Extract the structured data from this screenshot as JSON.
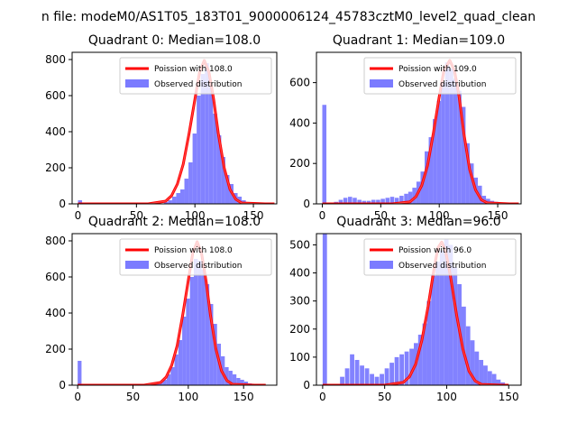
{
  "figure": {
    "suptitle": "n file: modeM0/AS1T05_183T01_9000006124_45783cztM0_level2_quad_clean"
  },
  "colors": {
    "hist": "#7b7bff",
    "fit": "#ff0000",
    "axis": "#000000",
    "background": "#ffffff"
  },
  "chart_data": [
    {
      "type": "bar",
      "title": "Quadrant 0: Median=108.0",
      "xlim": [
        -5,
        170
      ],
      "ylim": [
        0,
        840
      ],
      "xticks": [
        0,
        50,
        100,
        150
      ],
      "yticks": [
        0,
        200,
        400,
        600,
        800
      ],
      "legend": {
        "placement": "top-right",
        "entries": [
          "Poission with 108.0",
          "Observed distribution"
        ]
      },
      "hist": {
        "name": "Observed distribution",
        "bin_width": 3.5,
        "x": [
          0,
          73.5,
          77,
          80.5,
          84,
          87.5,
          91,
          94.5,
          98,
          101.5,
          105,
          108.5,
          112,
          115.5,
          119,
          122.5,
          126,
          129.5,
          133,
          136.5,
          140,
          143.5,
          147
        ],
        "values": [
          20,
          10,
          20,
          40,
          60,
          80,
          140,
          230,
          390,
          600,
          720,
          780,
          650,
          500,
          380,
          260,
          160,
          110,
          60,
          40,
          20,
          10,
          5
        ]
      },
      "fit": {
        "name": "Poission with 108.0",
        "x": [
          0,
          60,
          75,
          80,
          85,
          90,
          95,
          100,
          104,
          108,
          112,
          116,
          120,
          125,
          130,
          135,
          140,
          160,
          168
        ],
        "values": [
          0,
          0,
          15,
          45,
          110,
          220,
          390,
          580,
          730,
          795,
          730,
          580,
          390,
          200,
          80,
          25,
          5,
          0,
          0
        ]
      }
    },
    {
      "type": "bar",
      "title": "Quadrant 1: Median=109.0",
      "xlim": [
        -5,
        170
      ],
      "ylim": [
        0,
        750
      ],
      "xticks": [
        0,
        50,
        100,
        150
      ],
      "yticks": [
        0,
        200,
        400,
        600
      ],
      "legend": {
        "placement": "top-right",
        "entries": [
          "Poission with 109.0",
          "Observed distribution"
        ]
      },
      "hist": {
        "name": "Observed distribution",
        "bin_width": 3.5,
        "x": [
          0,
          10,
          14,
          18,
          22,
          26,
          30,
          34,
          38,
          42,
          46,
          50,
          54,
          58,
          62,
          66,
          70,
          73.5,
          77,
          80.5,
          84,
          87.5,
          91,
          94.5,
          98,
          101.5,
          105,
          108.5,
          112,
          115.5,
          119,
          122.5,
          126,
          129.5,
          133,
          136.5,
          140,
          143.5,
          147
        ],
        "values": [
          490,
          10,
          20,
          30,
          35,
          30,
          20,
          15,
          15,
          20,
          20,
          25,
          30,
          35,
          30,
          40,
          50,
          60,
          80,
          110,
          160,
          260,
          330,
          420,
          510,
          600,
          700,
          670,
          620,
          560,
          480,
          300,
          200,
          130,
          90,
          40,
          25,
          15,
          10
        ]
      },
      "fit": {
        "name": "Poission with 109.0",
        "x": [
          0,
          60,
          75,
          80,
          85,
          90,
          95,
          100,
          104,
          109,
          113,
          117,
          121,
          126,
          131,
          136,
          141,
          160,
          168
        ],
        "values": [
          0,
          0,
          10,
          35,
          90,
          190,
          350,
          530,
          660,
          710,
          660,
          530,
          350,
          170,
          70,
          20,
          5,
          0,
          0
        ]
      }
    },
    {
      "type": "bar",
      "title": "Quadrant 2: Median=108.0",
      "xlim": [
        -5,
        180
      ],
      "ylim": [
        0,
        840
      ],
      "xticks": [
        0,
        50,
        100,
        150
      ],
      "yticks": [
        0,
        200,
        400,
        600,
        800
      ],
      "legend": {
        "placement": "top-right",
        "entries": [
          "Poission with 108.0",
          "Observed distribution"
        ]
      },
      "hist": {
        "name": "Observed distribution",
        "bin_width": 3.5,
        "x": [
          0,
          70,
          73.5,
          77,
          80.5,
          84,
          87.5,
          91,
          94.5,
          98,
          101.5,
          105,
          108.5,
          112,
          115.5,
          119,
          122.5,
          126,
          129.5,
          133,
          136.5,
          140,
          143.5,
          147,
          150.5,
          154,
          157.5
        ],
        "values": [
          135,
          10,
          20,
          30,
          60,
          100,
          170,
          250,
          380,
          480,
          600,
          700,
          690,
          640,
          560,
          450,
          340,
          230,
          160,
          100,
          80,
          60,
          40,
          30,
          20,
          10,
          5
        ]
      },
      "fit": {
        "name": "Poission with 108.0",
        "x": [
          0,
          60,
          75,
          80,
          85,
          90,
          95,
          100,
          104,
          108,
          112,
          116,
          120,
          125,
          130,
          135,
          140,
          160,
          170
        ],
        "values": [
          0,
          0,
          15,
          45,
          110,
          220,
          390,
          580,
          730,
          795,
          730,
          580,
          390,
          200,
          80,
          25,
          5,
          0,
          0
        ]
      }
    },
    {
      "type": "bar",
      "title": "Quadrant 3: Median=96.0",
      "xlim": [
        -5,
        160
      ],
      "ylim": [
        0,
        540
      ],
      "xticks": [
        0,
        50,
        100,
        150
      ],
      "yticks": [
        0,
        100,
        200,
        300,
        400,
        500
      ],
      "legend": {
        "placement": "top-right",
        "entries": [
          "Poission with 96.0",
          "Observed distribution"
        ]
      },
      "hist": {
        "name": "Observed distribution",
        "bin_width": 3.5,
        "x": [
          0,
          14,
          18,
          22,
          26,
          30,
          34,
          38,
          42,
          46,
          50,
          54,
          58,
          62,
          66,
          70,
          73.5,
          77,
          80.5,
          84,
          87.5,
          91,
          94.5,
          98,
          101.5,
          105,
          108.5,
          112,
          115.5,
          119,
          122.5,
          126,
          129.5,
          133,
          136.5,
          140,
          143.5
        ],
        "values": [
          540,
          30,
          60,
          110,
          90,
          70,
          60,
          40,
          30,
          40,
          60,
          80,
          100,
          110,
          120,
          130,
          150,
          180,
          220,
          300,
          390,
          440,
          480,
          520,
          500,
          420,
          360,
          280,
          210,
          160,
          120,
          90,
          70,
          50,
          40,
          20,
          10
        ]
      },
      "fit": {
        "name": "Poission with 96.0",
        "x": [
          0,
          50,
          65,
          70,
          75,
          80,
          85,
          90,
          93,
          96,
          99,
          103,
          108,
          113,
          118,
          123,
          128,
          145,
          150
        ],
        "values": [
          0,
          0,
          10,
          30,
          75,
          160,
          280,
          420,
          490,
          510,
          480,
          390,
          250,
          130,
          50,
          15,
          3,
          0,
          0
        ]
      }
    }
  ]
}
